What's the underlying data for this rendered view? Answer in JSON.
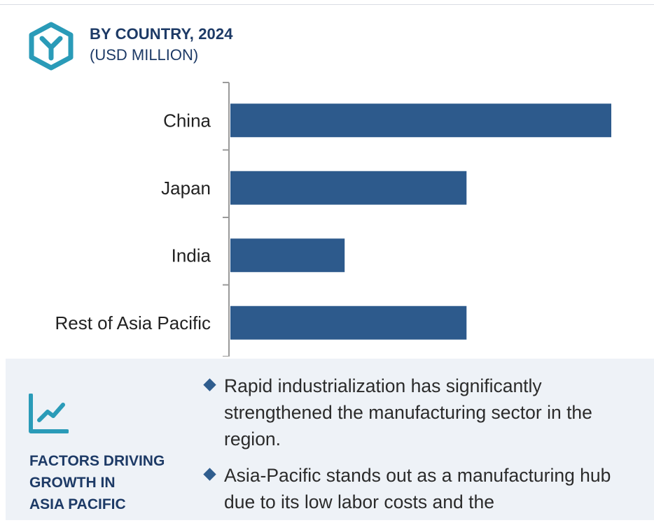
{
  "header": {
    "icon": "hexagon-y-logo-icon",
    "title": "BY COUNTRY, 2024",
    "subtitle": "(USD MILLION)"
  },
  "chart_data": {
    "type": "bar",
    "orientation": "horizontal",
    "title": "BY COUNTRY, 2024",
    "unit": "(USD MILLION)",
    "categories": [
      "China",
      "Japan",
      "India",
      "Rest of Asia Pacific"
    ],
    "values": [
      100,
      62,
      30,
      62
    ],
    "value_note": "relative bar lengths; no value axis printed",
    "bar_color": "#2d5a8c",
    "axis_color": "#9a9a9a",
    "grid": false,
    "legend": "none"
  },
  "factors": {
    "icon": "growth-chart-icon",
    "title_lines": [
      "FACTORS DRIVING",
      "GROWTH IN",
      "ASIA PACIFIC"
    ],
    "bullets": [
      "Rapid industrialization has significantly strengthened the manufacturing sector in the region.",
      "Asia-Pacific stands out as a manufacturing hub due to its low labor costs and the"
    ],
    "bullet_icon": "diamond-bullet-icon"
  },
  "colors": {
    "title": "#1d3a66",
    "icon_accent": "#2a9bb8",
    "panel_bg": "#eef2f7",
    "bullet": "#2f5d8e"
  }
}
